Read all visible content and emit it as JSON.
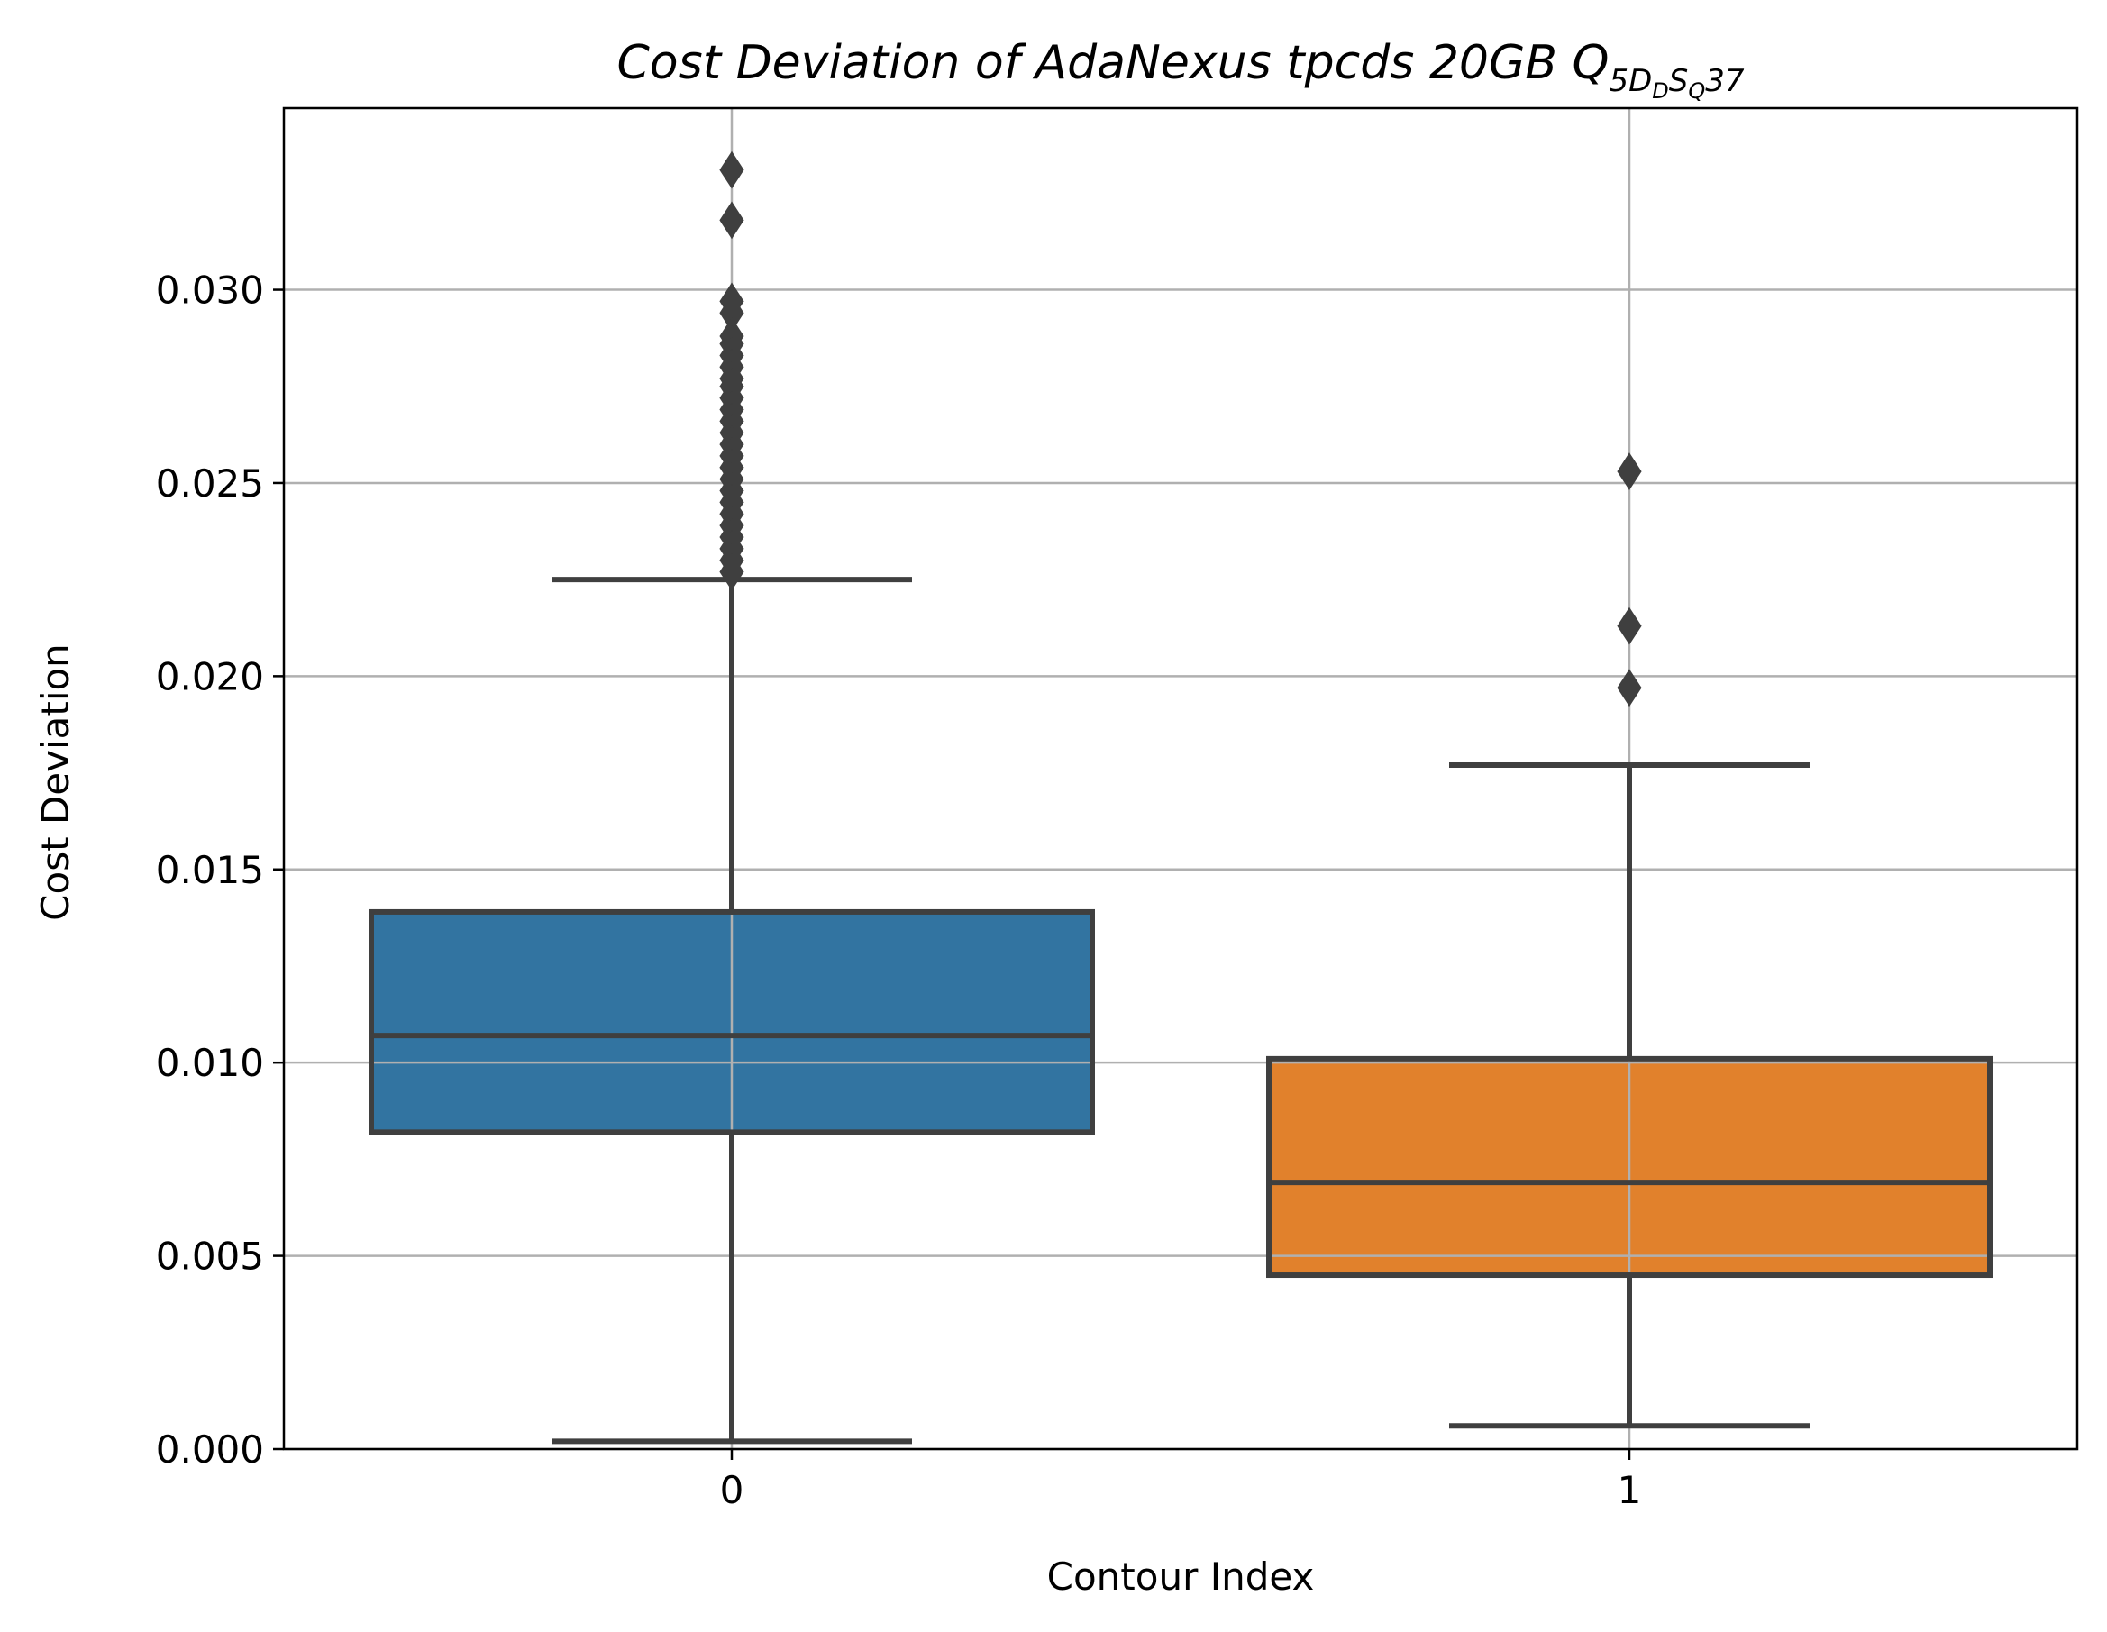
{
  "chart_data": {
    "type": "box",
    "title": {
      "main": "Cost Deviation of AdaNexus tpcds  20GB  Q",
      "subscript_prefix": "5D",
      "subscript_sub1": "D",
      "subscript_mid": "S",
      "subscript_sub2": "Q",
      "suffix": "37"
    },
    "xlabel": "Contour Index",
    "ylabel": "Cost Deviation",
    "categories": [
      "0",
      "1"
    ],
    "ylim": [
      0,
      0.0347
    ],
    "yticks": [
      0.0,
      0.005,
      0.01,
      0.015,
      0.02,
      0.025,
      0.03
    ],
    "ytick_labels": [
      "0.000",
      "0.005",
      "0.010",
      "0.015",
      "0.020",
      "0.025",
      "0.030"
    ],
    "grid": true,
    "series": [
      {
        "category": "0",
        "color": "#3274a1",
        "whisker_low": 0.0002,
        "q1": 0.0082,
        "median": 0.0107,
        "q3": 0.0139,
        "whisker_high": 0.0225,
        "outliers": [
          0.0331,
          0.0318,
          0.0297,
          0.0294,
          0.0288,
          0.0286,
          0.0283,
          0.028,
          0.0277,
          0.0275,
          0.0272,
          0.0269,
          0.0266,
          0.0263,
          0.026,
          0.0257,
          0.0254,
          0.0251,
          0.0248,
          0.0245,
          0.0242,
          0.0239,
          0.0236,
          0.0233,
          0.023,
          0.0227
        ]
      },
      {
        "category": "1",
        "color": "#e1812c",
        "whisker_low": 0.0006,
        "q1": 0.0045,
        "median": 0.0069,
        "q3": 0.0101,
        "whisker_high": 0.0177,
        "outliers": [
          0.0253,
          0.0213,
          0.0197
        ]
      }
    ],
    "colors": {
      "box_edge": "#3f3f3f",
      "grid": "#b0b0b0",
      "axis": "#000000"
    }
  }
}
